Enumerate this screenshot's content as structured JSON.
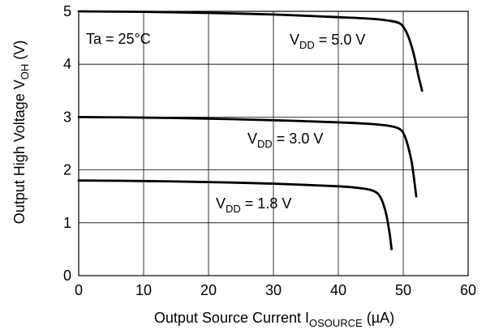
{
  "chart_data": {
    "type": "line",
    "xlabel": {
      "main": "Output Source Current  I",
      "subscript": "OSOURCE",
      "unit": "  (µA)"
    },
    "ylabel": {
      "main": "Output High Voltage  V",
      "subscript": "OH",
      "unit": "  (V)"
    },
    "xlim": [
      0,
      60
    ],
    "ylim": [
      0,
      5
    ],
    "xticks": [
      "0",
      "10",
      "20",
      "30",
      "40",
      "50",
      "60"
    ],
    "yticks": [
      "0",
      "1",
      "2",
      "3",
      "4",
      "5"
    ],
    "grid": true,
    "annotations": {
      "ta": "Ta = 25°C"
    },
    "series": [
      {
        "name": {
          "main": "V",
          "subscript": "DD",
          "rest": " = 5.0 V"
        },
        "color": "#000000",
        "x": [
          0,
          10,
          20,
          30,
          40,
          45,
          48,
          49.5,
          50.3,
          51.0,
          51.7,
          52.3,
          52.9
        ],
        "y": [
          5.0,
          4.99,
          4.97,
          4.94,
          4.89,
          4.86,
          4.82,
          4.77,
          4.65,
          4.45,
          4.15,
          3.8,
          3.5
        ]
      },
      {
        "name": {
          "main": "V",
          "subscript": "DD",
          "rest": " = 3.0 V"
        },
        "color": "#000000",
        "x": [
          0,
          10,
          20,
          30,
          40,
          45,
          48,
          49.5,
          50.2,
          50.8,
          51.3,
          51.7,
          52.0
        ],
        "y": [
          3.0,
          2.99,
          2.97,
          2.94,
          2.9,
          2.87,
          2.83,
          2.77,
          2.65,
          2.42,
          2.15,
          1.8,
          1.5
        ]
      },
      {
        "name": {
          "main": "V",
          "subscript": "DD",
          "rest": " = 1.8 V"
        },
        "color": "#000000",
        "x": [
          0,
          10,
          20,
          30,
          40,
          43,
          45,
          46.1,
          46.8,
          47.4,
          47.9,
          48.2
        ],
        "y": [
          1.8,
          1.79,
          1.77,
          1.74,
          1.69,
          1.66,
          1.62,
          1.55,
          1.4,
          1.15,
          0.8,
          0.5
        ]
      }
    ]
  }
}
